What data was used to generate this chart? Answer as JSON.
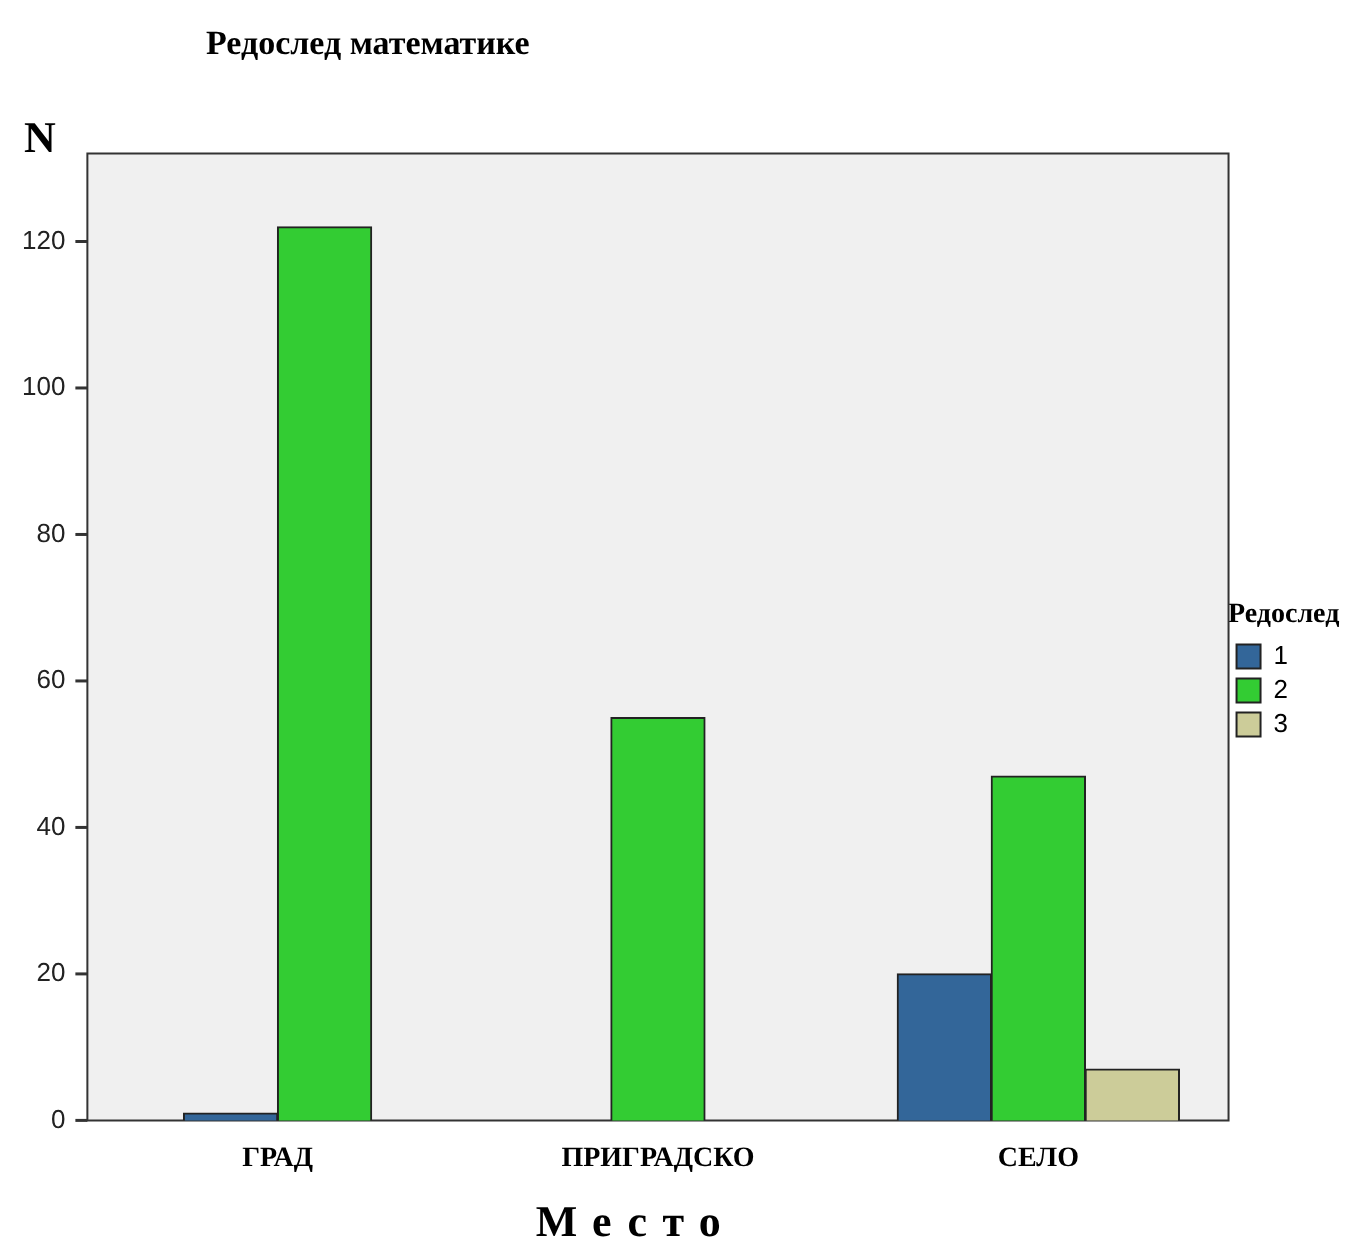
{
  "chart_data": {
    "type": "bar",
    "title": "Редослед математике",
    "xlabel": "Место",
    "ylabel": "N",
    "legend_title": "Редослед",
    "categories": [
      "ГРАД",
      "ПРИГРАДСКО",
      "СЕЛО"
    ],
    "series": [
      {
        "name": "1",
        "color": "#336699",
        "values": [
          1,
          null,
          20
        ]
      },
      {
        "name": "2",
        "color": "#33cc33",
        "values": [
          122,
          55,
          47
        ]
      },
      {
        "name": "3",
        "color": "#cccc99",
        "values": [
          null,
          null,
          7
        ]
      }
    ],
    "ylim": [
      0,
      132
    ],
    "yticks": [
      0,
      20,
      40,
      60,
      80,
      100,
      120
    ],
    "grid": false,
    "legend": "right"
  }
}
